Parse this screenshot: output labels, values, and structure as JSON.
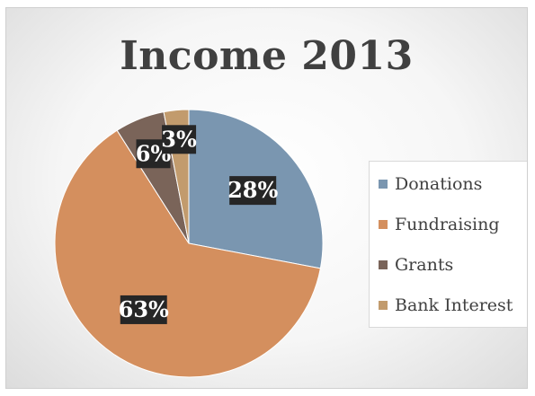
{
  "chart_data": {
    "type": "pie",
    "title": "Income 2013",
    "categories": [
      "Donations",
      "Fundraising",
      "Grants",
      "Bank Interest"
    ],
    "values": [
      28,
      63,
      6,
      3
    ],
    "value_labels": [
      "28%",
      "63%",
      "6%",
      "3%"
    ],
    "colors": [
      "#7a96b0",
      "#d48f5e",
      "#7a6459",
      "#c29b6d"
    ],
    "label_color": "#ffffff",
    "label_background": "#262626",
    "legend_position": "right",
    "start_angle": "12 o'clock",
    "direction": "clockwise"
  }
}
